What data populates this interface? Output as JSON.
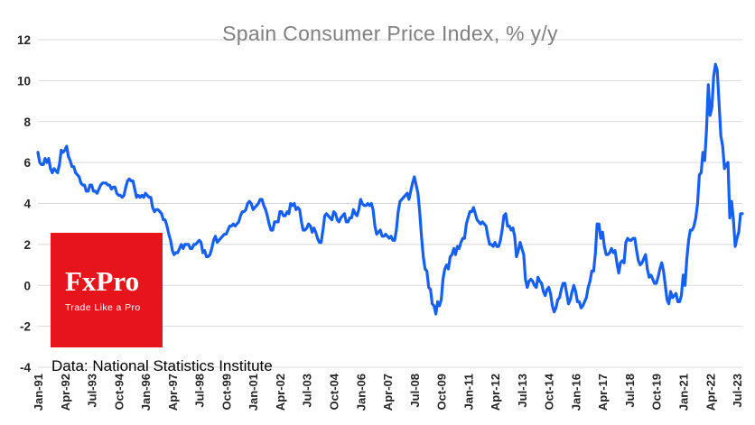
{
  "chart_data": {
    "type": "line",
    "title": "Spain Consumer Price Index, % y/y",
    "xlabel": "",
    "ylabel": "",
    "ylim": [
      -4,
      12
    ],
    "y_ticks": [
      -4,
      -2,
      0,
      2,
      4,
      6,
      8,
      10,
      12
    ],
    "grid": "horizontal",
    "legend": "none",
    "x_frequency": "monthly",
    "x_start": "Jan-91",
    "x_end": "Oct-23",
    "x_tick_every_n_points": 15,
    "x_tick_labels": [
      "Jan-91",
      "Apr-92",
      "Jul-93",
      "Oct-94",
      "Jan-96",
      "Apr-97",
      "Jul-98",
      "Oct-99",
      "Jan-01",
      "Apr-02",
      "Jul-03",
      "Oct-04",
      "Jan-06",
      "Apr-07",
      "Jul-08",
      "Oct-09",
      "Jan-11",
      "Apr-12",
      "Jul-13",
      "Oct-14",
      "Jan-16",
      "Apr-17",
      "Jul-18",
      "Oct-19",
      "Jan-21",
      "Apr-22",
      "Jul-23"
    ],
    "series": [
      {
        "name": "Spain CPI, % y/y",
        "color": "#1560F0",
        "values": [
          6.5,
          6.0,
          5.9,
          5.9,
          6.2,
          6.0,
          6.2,
          5.7,
          5.5,
          5.7,
          5.6,
          5.5,
          5.9,
          6.6,
          6.5,
          6.6,
          6.8,
          6.3,
          6.1,
          5.8,
          5.8,
          5.5,
          5.4,
          5.3,
          5.0,
          4.9,
          4.9,
          4.6,
          4.6,
          4.9,
          4.9,
          4.6,
          4.6,
          4.5,
          4.7,
          4.9,
          5.0,
          5.0,
          5.0,
          4.9,
          4.9,
          4.7,
          4.8,
          4.8,
          4.5,
          4.4,
          4.4,
          4.3,
          4.4,
          4.8,
          5.1,
          5.2,
          5.1,
          5.1,
          4.7,
          4.3,
          4.4,
          4.3,
          4.4,
          4.3,
          4.5,
          4.4,
          4.3,
          4.3,
          3.8,
          3.6,
          3.7,
          3.7,
          3.6,
          3.5,
          3.2,
          3.2,
          2.9,
          2.5,
          2.2,
          1.7,
          1.5,
          1.6,
          1.6,
          1.8,
          2.0,
          1.8,
          2.0,
          2.0,
          2.0,
          1.8,
          1.8,
          2.0,
          2.0,
          2.1,
          2.2,
          2.1,
          1.6,
          1.7,
          1.4,
          1.4,
          1.5,
          1.8,
          2.2,
          2.4,
          2.1,
          2.2,
          2.3,
          2.4,
          2.5,
          2.5,
          2.7,
          2.9,
          2.9,
          3.0,
          2.9,
          3.0,
          3.1,
          3.4,
          3.6,
          3.6,
          3.7,
          4.0,
          4.1,
          4.0,
          3.7,
          3.8,
          3.9,
          4.0,
          4.2,
          4.2,
          3.9,
          3.7,
          3.4,
          3.0,
          2.7,
          2.7,
          3.1,
          3.1,
          3.1,
          3.6,
          3.6,
          3.4,
          3.4,
          3.6,
          3.5,
          4.0,
          3.9,
          4.0,
          3.7,
          3.8,
          3.7,
          3.1,
          2.7,
          2.7,
          2.8,
          3.0,
          2.9,
          2.6,
          2.8,
          2.6,
          2.3,
          2.1,
          2.1,
          2.7,
          3.4,
          3.5,
          3.4,
          3.3,
          3.2,
          3.6,
          3.5,
          3.2,
          3.1,
          3.3,
          3.4,
          3.5,
          3.1,
          3.1,
          3.3,
          3.3,
          3.7,
          3.5,
          3.4,
          3.7,
          4.2,
          4.0,
          3.9,
          3.9,
          4.0,
          3.9,
          4.0,
          3.7,
          2.9,
          2.5,
          2.6,
          2.7,
          2.4,
          2.4,
          2.5,
          2.4,
          2.3,
          2.4,
          2.2,
          2.2,
          2.7,
          3.6,
          4.1,
          4.2,
          4.3,
          4.4,
          4.5,
          4.2,
          4.6,
          5.0,
          5.3,
          4.9,
          4.5,
          3.6,
          2.4,
          1.4,
          0.8,
          0.7,
          -0.1,
          -0.2,
          -0.9,
          -1.0,
          -1.4,
          -0.8,
          -1.0,
          -0.7,
          0.3,
          0.8,
          1.0,
          0.8,
          1.4,
          1.5,
          1.8,
          1.5,
          1.9,
          1.8,
          2.1,
          2.3,
          2.3,
          3.0,
          3.3,
          3.6,
          3.6,
          3.8,
          3.5,
          3.2,
          3.1,
          3.0,
          3.1,
          3.0,
          2.9,
          2.4,
          2.0,
          2.0,
          1.9,
          2.1,
          1.9,
          1.9,
          2.2,
          2.7,
          3.4,
          3.5,
          2.9,
          2.9,
          2.7,
          2.8,
          2.4,
          1.4,
          1.7,
          2.1,
          1.8,
          1.5,
          0.3,
          -0.1,
          0.2,
          0.3,
          0.2,
          0.0,
          -0.1,
          0.4,
          0.2,
          0.1,
          -0.3,
          -0.5,
          -0.2,
          -0.1,
          -0.4,
          -1.0,
          -1.3,
          -1.1,
          -0.7,
          -0.6,
          -0.2,
          0.1,
          0.1,
          -0.4,
          -0.9,
          -0.7,
          -0.3,
          0.0,
          -0.3,
          -0.8,
          -0.8,
          -1.1,
          -1.0,
          -0.8,
          -0.6,
          -0.1,
          0.2,
          0.7,
          0.7,
          1.6,
          3.0,
          3.0,
          2.3,
          2.6,
          1.9,
          1.5,
          1.5,
          1.6,
          1.8,
          1.6,
          1.7,
          1.1,
          0.6,
          1.1,
          1.2,
          1.1,
          2.1,
          2.3,
          2.2,
          2.2,
          2.3,
          2.3,
          1.7,
          1.2,
          1.0,
          1.1,
          1.3,
          1.5,
          0.8,
          0.4,
          0.5,
          0.3,
          0.1,
          0.1,
          0.4,
          0.8,
          1.1,
          0.7,
          0.0,
          -0.7,
          -0.9,
          -0.3,
          -0.6,
          -0.5,
          -0.4,
          -0.8,
          -0.8,
          -0.5,
          0.5,
          0.0,
          1.3,
          2.2,
          2.7,
          2.7,
          2.9,
          3.3,
          4.0,
          5.4,
          5.5,
          6.5,
          6.1,
          7.6,
          9.8,
          8.3,
          8.7,
          10.2,
          10.8,
          10.5,
          8.9,
          7.3,
          6.8,
          5.7,
          5.9,
          6.0,
          3.3,
          4.1,
          3.2,
          1.9,
          2.3,
          2.6,
          3.5,
          3.5
        ]
      }
    ],
    "colors": {
      "title": "#808080",
      "grid": "#d9d9d9",
      "tick_label": "#262626"
    }
  },
  "logo": {
    "name": "FxPro",
    "tagline": "Trade Like a Pro",
    "bg": "#E8141C"
  },
  "footer": {
    "source": "Data: National Statistics Institute"
  }
}
